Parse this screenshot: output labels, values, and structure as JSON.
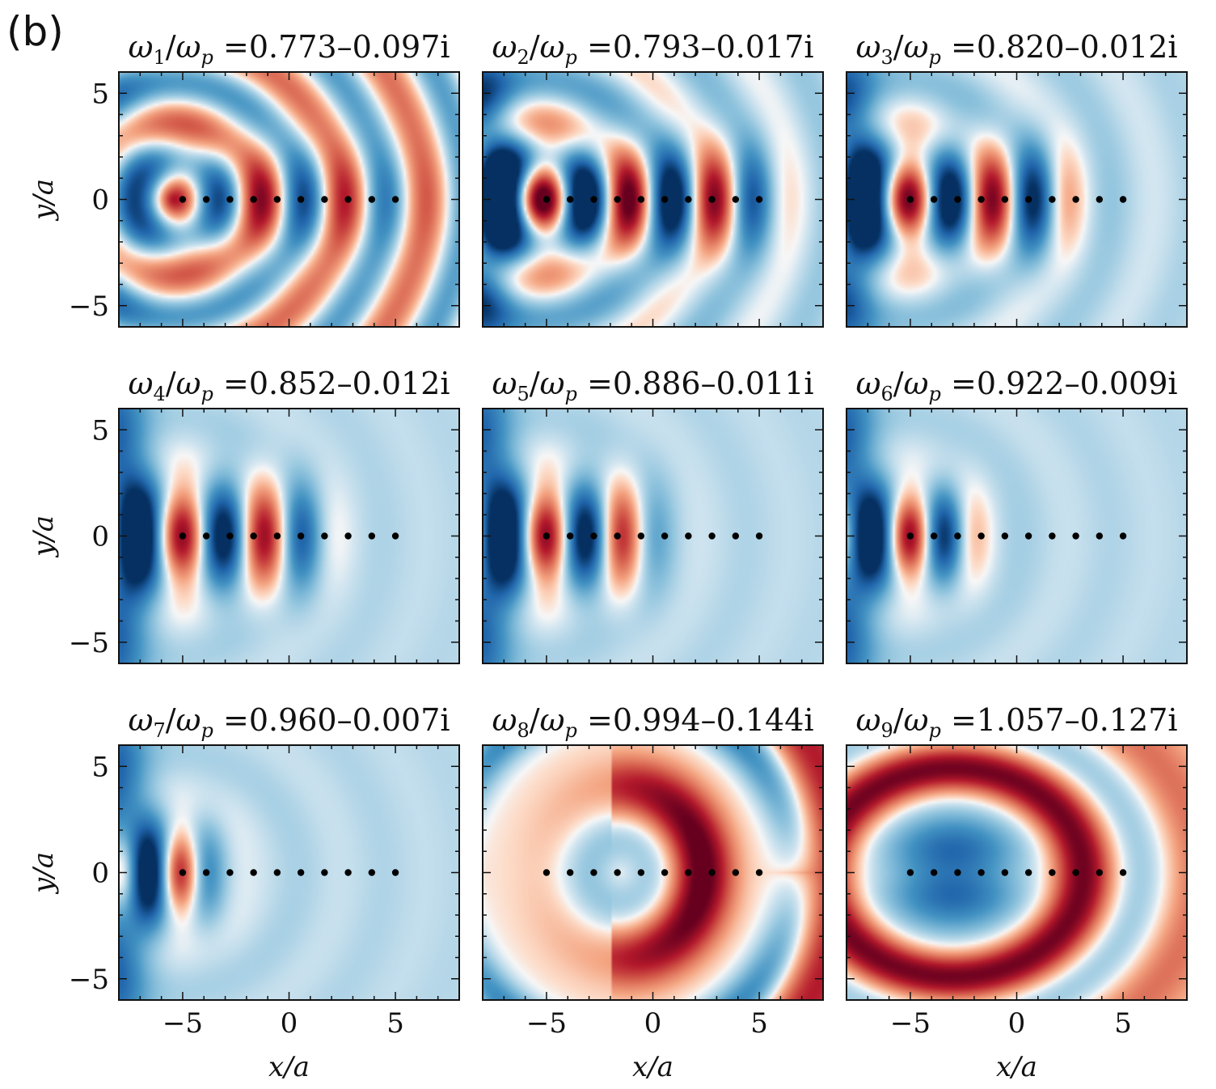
{
  "figure": {
    "panel_label": "(b)",
    "colors": {
      "negative": "#1b5a9a",
      "positive": "#b2182b",
      "dot": "#000000",
      "axis": "#111111"
    }
  },
  "chart_data": [
    {
      "type": "heatmap",
      "title": "ω1/ωp =0.773–0.097i",
      "mode": 1,
      "freq_label": "ω",
      "sub": "1",
      "p_sub": "p",
      "eq_value": "=0.773–0.097i",
      "xlabel": "x/a",
      "ylabel": "y/a",
      "xlim": [
        -8,
        8
      ],
      "ylim": [
        -6,
        6
      ],
      "xticks": [
        -5,
        0,
        5
      ],
      "yticks": [
        -5,
        0,
        5
      ],
      "xtick_labels": [
        "−5",
        "0",
        "5"
      ],
      "ytick_labels": [
        "−5",
        "0",
        "5"
      ],
      "dots_x": [
        -5,
        -3.889,
        -2.778,
        -1.667,
        -0.556,
        0.556,
        1.667,
        2.778,
        3.889,
        5
      ],
      "dots_y": 0
    },
    {
      "type": "heatmap",
      "title": "ω2/ωp =0.793–0.017i",
      "mode": 2,
      "freq_label": "ω",
      "sub": "2",
      "p_sub": "p",
      "eq_value": "=0.793–0.017i",
      "xlabel": "x/a",
      "ylabel": "y/a",
      "xlim": [
        -8,
        8
      ],
      "ylim": [
        -6,
        6
      ],
      "xticks": [
        -5,
        0,
        5
      ],
      "yticks": [
        -5,
        0,
        5
      ],
      "xtick_labels": [
        "−5",
        "0",
        "5"
      ],
      "ytick_labels": [
        "−5",
        "0",
        "5"
      ],
      "dots_x": [
        -5,
        -3.889,
        -2.778,
        -1.667,
        -0.556,
        0.556,
        1.667,
        2.778,
        3.889,
        5
      ],
      "dots_y": 0
    },
    {
      "type": "heatmap",
      "title": "ω3/ωp =0.820–0.012i",
      "mode": 3,
      "freq_label": "ω",
      "sub": "3",
      "p_sub": "p",
      "eq_value": "=0.820–0.012i",
      "xlabel": "x/a",
      "ylabel": "y/a",
      "xlim": [
        -8,
        8
      ],
      "ylim": [
        -6,
        6
      ],
      "xticks": [
        -5,
        0,
        5
      ],
      "yticks": [
        -5,
        0,
        5
      ],
      "xtick_labels": [
        "−5",
        "0",
        "5"
      ],
      "ytick_labels": [
        "−5",
        "0",
        "5"
      ],
      "dots_x": [
        -5,
        -3.889,
        -2.778,
        -1.667,
        -0.556,
        0.556,
        1.667,
        2.778,
        3.889,
        5
      ],
      "dots_y": 0
    },
    {
      "type": "heatmap",
      "title": "ω4/ωp =0.852–0.012i",
      "mode": 4,
      "freq_label": "ω",
      "sub": "4",
      "p_sub": "p",
      "eq_value": "=0.852–0.012i",
      "xlabel": "x/a",
      "ylabel": "y/a",
      "xlim": [
        -8,
        8
      ],
      "ylim": [
        -6,
        6
      ],
      "xticks": [
        -5,
        0,
        5
      ],
      "yticks": [
        -5,
        0,
        5
      ],
      "xtick_labels": [
        "−5",
        "0",
        "5"
      ],
      "ytick_labels": [
        "−5",
        "0",
        "5"
      ],
      "dots_x": [
        -5,
        -3.889,
        -2.778,
        -1.667,
        -0.556,
        0.556,
        1.667,
        2.778,
        3.889,
        5
      ],
      "dots_y": 0
    },
    {
      "type": "heatmap",
      "title": "ω5/ωp =0.886–0.011i",
      "mode": 5,
      "freq_label": "ω",
      "sub": "5",
      "p_sub": "p",
      "eq_value": "=0.886–0.011i",
      "xlabel": "x/a",
      "ylabel": "y/a",
      "xlim": [
        -8,
        8
      ],
      "ylim": [
        -6,
        6
      ],
      "xticks": [
        -5,
        0,
        5
      ],
      "yticks": [
        -5,
        0,
        5
      ],
      "xtick_labels": [
        "−5",
        "0",
        "5"
      ],
      "ytick_labels": [
        "−5",
        "0",
        "5"
      ],
      "dots_x": [
        -5,
        -3.889,
        -2.778,
        -1.667,
        -0.556,
        0.556,
        1.667,
        2.778,
        3.889,
        5
      ],
      "dots_y": 0
    },
    {
      "type": "heatmap",
      "title": "ω6/ωp =0.922–0.009i",
      "mode": 6,
      "freq_label": "ω",
      "sub": "6",
      "p_sub": "p",
      "eq_value": "=0.922–0.009i",
      "xlabel": "x/a",
      "ylabel": "y/a",
      "xlim": [
        -8,
        8
      ],
      "ylim": [
        -6,
        6
      ],
      "xticks": [
        -5,
        0,
        5
      ],
      "yticks": [
        -5,
        0,
        5
      ],
      "xtick_labels": [
        "−5",
        "0",
        "5"
      ],
      "ytick_labels": [
        "−5",
        "0",
        "5"
      ],
      "dots_x": [
        -5,
        -3.889,
        -2.778,
        -1.667,
        -0.556,
        0.556,
        1.667,
        2.778,
        3.889,
        5
      ],
      "dots_y": 0
    },
    {
      "type": "heatmap",
      "title": "ω7/ωp =0.960–0.007i",
      "mode": 7,
      "freq_label": "ω",
      "sub": "7",
      "p_sub": "p",
      "eq_value": "=0.960–0.007i",
      "xlabel": "x/a",
      "ylabel": "y/a",
      "xlim": [
        -8,
        8
      ],
      "ylim": [
        -6,
        6
      ],
      "xticks": [
        -5,
        0,
        5
      ],
      "yticks": [
        -5,
        0,
        5
      ],
      "xtick_labels": [
        "−5",
        "0",
        "5"
      ],
      "ytick_labels": [
        "−5",
        "0",
        "5"
      ],
      "dots_x": [
        -5,
        -3.889,
        -2.778,
        -1.667,
        -0.556,
        0.556,
        1.667,
        2.778,
        3.889,
        5
      ],
      "dots_y": 0
    },
    {
      "type": "heatmap",
      "title": "ω8/ωp =0.994–0.144i",
      "mode": 8,
      "freq_label": "ω",
      "sub": "8",
      "p_sub": "p",
      "eq_value": "=0.994–0.144i",
      "xlabel": "x/a",
      "ylabel": "y/a",
      "xlim": [
        -8,
        8
      ],
      "ylim": [
        -6,
        6
      ],
      "xticks": [
        -5,
        0,
        5
      ],
      "yticks": [
        -5,
        0,
        5
      ],
      "xtick_labels": [
        "−5",
        "0",
        "5"
      ],
      "ytick_labels": [
        "−5",
        "0",
        "5"
      ],
      "dots_x": [
        -5,
        -3.889,
        -2.778,
        -1.667,
        -0.556,
        0.556,
        1.667,
        2.778,
        3.889,
        5
      ],
      "dots_y": 0
    },
    {
      "type": "heatmap",
      "title": "ω9/ωp =1.057–0.127i",
      "mode": 9,
      "freq_label": "ω",
      "sub": "9",
      "p_sub": "p",
      "eq_value": "=1.057–0.127i",
      "xlabel": "x/a",
      "ylabel": "y/a",
      "xlim": [
        -8,
        8
      ],
      "ylim": [
        -6,
        6
      ],
      "xticks": [
        -5,
        0,
        5
      ],
      "yticks": [
        -5,
        0,
        5
      ],
      "xtick_labels": [
        "−5",
        "0",
        "5"
      ],
      "ytick_labels": [
        "−5",
        "0",
        "5"
      ],
      "dots_x": [
        -5,
        -3.889,
        -2.778,
        -1.667,
        -0.556,
        0.556,
        1.667,
        2.778,
        3.889,
        5
      ],
      "dots_y": 0
    }
  ]
}
